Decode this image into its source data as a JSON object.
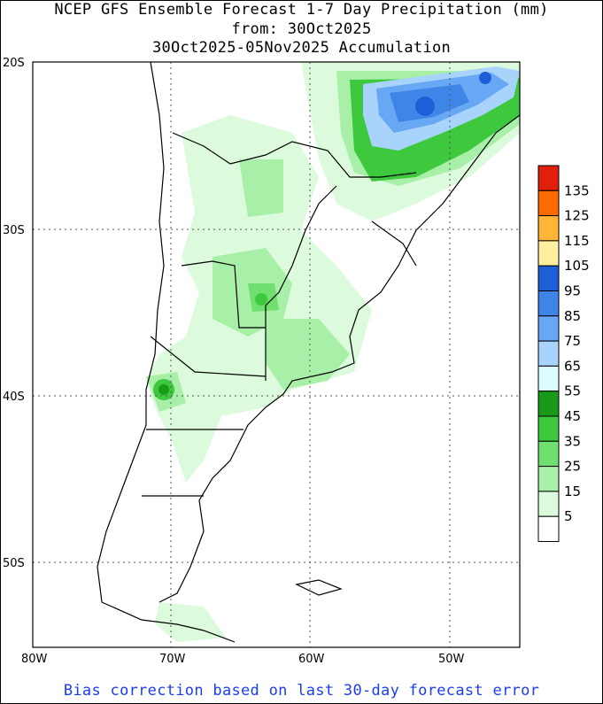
{
  "title": {
    "line1": "NCEP GFS Ensemble Forecast 1-7 Day Precipitation (mm)",
    "line2": "from: 30Oct2025",
    "line3": "30Oct2025-05Nov2025 Accumulation"
  },
  "footer": "Bias correction based on last 30-day forecast error",
  "axes": {
    "lat_labels": [
      "20S",
      "30S",
      "40S",
      "50S"
    ],
    "lon_labels": [
      "80W",
      "70W",
      "60W",
      "50W"
    ]
  },
  "legend": {
    "levels": [
      "135",
      "125",
      "115",
      "105",
      "95",
      "85",
      "75",
      "65",
      "55",
      "45",
      "35",
      "25",
      "15",
      "5"
    ],
    "colors": [
      "#e0200c",
      "#ff6a00",
      "#ffb637",
      "#fff0a0",
      "#1f5fd6",
      "#3f85e8",
      "#67a7f3",
      "#a8d3fb",
      "#dcfdfd",
      "#1a9a1a",
      "#3ec83e",
      "#6fe06f",
      "#a8f0a8",
      "#dcfadc",
      "#ffffff"
    ]
  }
}
